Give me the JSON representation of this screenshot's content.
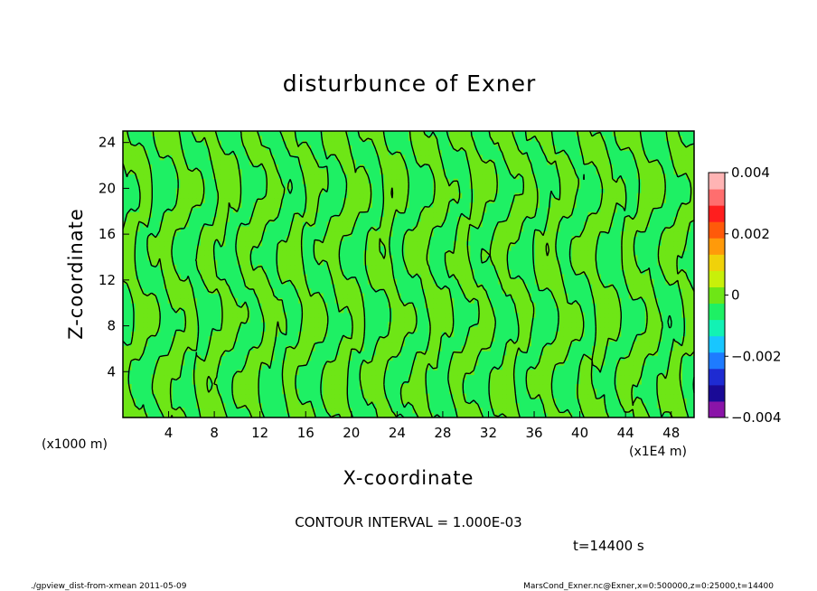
{
  "chart_data": {
    "type": "heatmap",
    "title": "disturbunce of Exner",
    "xlabel": "X-coordinate",
    "ylabel": "Z-coordinate",
    "x_unit": "(x1E4 m)",
    "y_unit": "(x1000 m)",
    "xlim": [
      0,
      50
    ],
    "ylim": [
      0,
      25
    ],
    "x_ticks": [
      4,
      8,
      12,
      16,
      20,
      24,
      28,
      32,
      36,
      40,
      44,
      48
    ],
    "y_ticks": [
      4,
      8,
      12,
      16,
      20,
      24
    ],
    "colorbar": {
      "range": [
        -0.004,
        0.004
      ],
      "tick_values": [
        0.004,
        0.002,
        0,
        -0.002,
        -0.004
      ],
      "tick_labels": [
        "0.004",
        "0.002",
        "0",
        "−0.002",
        "−0.004"
      ],
      "colors": [
        "#8a14a8",
        "#1a0a96",
        "#1e2bd2",
        "#1e7bff",
        "#18c6ff",
        "#12f2b4",
        "#1ef064",
        "#6ee616",
        "#c8f00a",
        "#f0d20a",
        "#ff9a0a",
        "#ff5a0a",
        "#ff1e1e",
        "#ff6e6e",
        "#ffb4b4"
      ]
    },
    "field_colors": {
      "negative": "#1ef064",
      "positive": "#6ee616"
    },
    "contour_interval": "CONTOUR INTERVAL = 1.000E-03",
    "grid": false,
    "legend": "right"
  },
  "annotations": {
    "time": "t=14400 s",
    "footer_left": "./gpview_dist-from-xmean  2011-05-09",
    "footer_right": "MarsCond_Exner.nc@Exner,x=0:500000,z=0:25000,t=14400"
  }
}
